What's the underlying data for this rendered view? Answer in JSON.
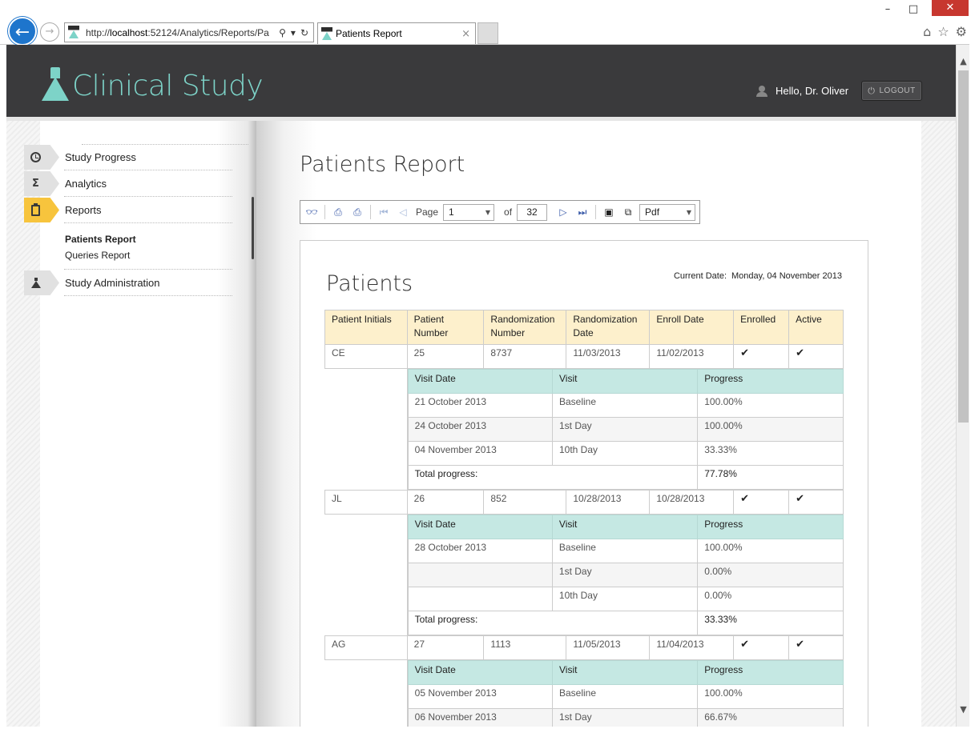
{
  "browser": {
    "url_prefix": "http://",
    "url_host": "localhost",
    "url_rest": ":52124/Analytics/Reports/Pa",
    "tab_title": "Patients Report",
    "window_controls": {
      "minimize": "–",
      "maximize": "□",
      "close": "✕"
    }
  },
  "header": {
    "brand": "Clinical Study",
    "greeting": "Hello, Dr. Oliver",
    "logout_label": "LOGOUT"
  },
  "sidebar": {
    "items": [
      {
        "label": "Study Progress",
        "icon": "clock-icon"
      },
      {
        "label": "Analytics",
        "icon": "sigma-icon"
      },
      {
        "label": "Reports",
        "icon": "clipboard-icon",
        "active": true
      },
      {
        "label": "Study Administration",
        "icon": "flask-icon"
      }
    ],
    "sub_items": [
      {
        "label": "Patients Report",
        "current": true
      },
      {
        "label": "Queries Report"
      }
    ]
  },
  "page": {
    "title": "Patients Report"
  },
  "toolbar": {
    "page_label": "Page",
    "page_value": "1",
    "of_label": "of",
    "total_pages": "32",
    "export_format": "Pdf"
  },
  "report": {
    "title": "Patients",
    "current_date_label": "Current Date:",
    "current_date_value": "Monday, 04 November 2013",
    "columns": [
      "Patient Initials",
      "Patient Number",
      "Randomization Number",
      "Randomization Date",
      "Enroll Date",
      "Enrolled",
      "Active"
    ],
    "visit_columns": [
      "Visit Date",
      "Visit",
      "Progress"
    ],
    "total_label": "Total progress:",
    "check_glyph": "✔",
    "patients": [
      {
        "initials": "CE",
        "number": "25",
        "rand_number": "8737",
        "rand_date": "11/03/2013",
        "enroll_date": "11/02/2013",
        "visits": [
          {
            "date": "21 October 2013",
            "visit": "Baseline",
            "progress": "100.00%"
          },
          {
            "date": "24 October 2013",
            "visit": "1st Day",
            "progress": "100.00%"
          },
          {
            "date": "04 November 2013",
            "visit": "10th Day",
            "progress": "33.33%"
          }
        ],
        "total": "77.78%"
      },
      {
        "initials": "JL",
        "number": "26",
        "rand_number": "852",
        "rand_date": "10/28/2013",
        "enroll_date": "10/28/2013",
        "visits": [
          {
            "date": "28 October 2013",
            "visit": "Baseline",
            "progress": "100.00%"
          },
          {
            "date": "",
            "visit": "1st Day",
            "progress": "0.00%"
          },
          {
            "date": "",
            "visit": "10th Day",
            "progress": "0.00%"
          }
        ],
        "total": "33.33%"
      },
      {
        "initials": "AG",
        "number": "27",
        "rand_number": "1113",
        "rand_date": "11/05/2013",
        "enroll_date": "11/04/2013",
        "visits": [
          {
            "date": "05 November 2013",
            "visit": "Baseline",
            "progress": "100.00%"
          },
          {
            "date": "06 November 2013",
            "visit": "1st Day",
            "progress": "66.67%"
          }
        ]
      }
    ]
  }
}
